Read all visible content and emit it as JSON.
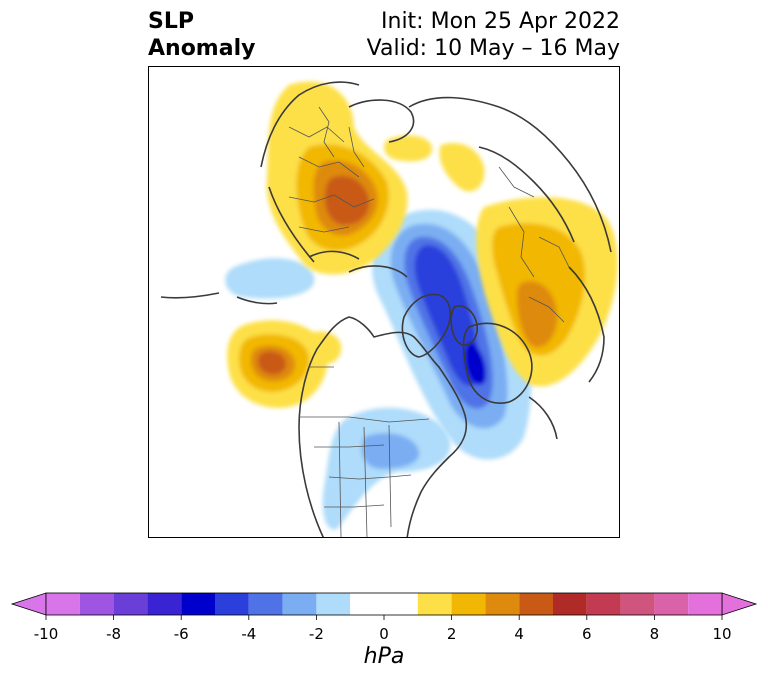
{
  "title": {
    "left_line1": "SLP",
    "left_line2": "Anomaly",
    "right_line1": "Init: Mon 25 Apr 2022",
    "right_line2": "Valid: 10 May – 16 May"
  },
  "colorbar": {
    "units": "hPa",
    "ticks": [
      "-10",
      "-8",
      "-6",
      "-4",
      "-2",
      "0",
      "2",
      "4",
      "6",
      "8",
      "10"
    ],
    "tick_values": [
      -10,
      -8,
      -6,
      -4,
      -2,
      0,
      2,
      4,
      6,
      8,
      10
    ],
    "bins": [
      {
        "from": -10,
        "to": -9,
        "color": "#d875e8"
      },
      {
        "from": -9,
        "to": -8,
        "color": "#a055e2"
      },
      {
        "from": -8,
        "to": -7,
        "color": "#6a3fd8"
      },
      {
        "from": -7,
        "to": -6,
        "color": "#3a23d3"
      },
      {
        "from": -6,
        "to": -5,
        "color": "#0000cc"
      },
      {
        "from": -5,
        "to": -4,
        "color": "#2a3fdc"
      },
      {
        "from": -4,
        "to": -3,
        "color": "#4f73e6"
      },
      {
        "from": -3,
        "to": -2,
        "color": "#7aadf2"
      },
      {
        "from": -2,
        "to": -1,
        "color": "#aedcfa"
      },
      {
        "from": -1,
        "to": 1,
        "color": "#ffffff"
      },
      {
        "from": 1,
        "to": 2,
        "color": "#fde047"
      },
      {
        "from": 2,
        "to": 3,
        "color": "#f2b705"
      },
      {
        "from": 3,
        "to": 4,
        "color": "#de8a0e"
      },
      {
        "from": 4,
        "to": 5,
        "color": "#c95a16"
      },
      {
        "from": 5,
        "to": 6,
        "color": "#b02a27"
      },
      {
        "from": 6,
        "to": 7,
        "color": "#c23b52"
      },
      {
        "from": 7,
        "to": 8,
        "color": "#d0557e"
      },
      {
        "from": 8,
        "to": 9,
        "color": "#da62a8"
      },
      {
        "from": 9,
        "to": 10,
        "color": "#e470dc"
      }
    ],
    "extend_low_color": "#d875e8",
    "extend_high_color": "#e470dc"
  },
  "map": {
    "projection": "north-polar-stereographic",
    "features": [
      "coastlines",
      "country-borders",
      "us-state-borders"
    ],
    "anomaly_centers": [
      {
        "region": "Eastern Europe / Scandinavia",
        "sign": "positive",
        "max_hpa": 5
      },
      {
        "region": "Gulf of Alaska / North Pacific",
        "sign": "positive",
        "max_hpa": 5
      },
      {
        "region": "East Siberia",
        "sign": "positive",
        "max_hpa": 4
      },
      {
        "region": "Canadian Arctic to Hudson Bay",
        "sign": "negative",
        "max_hpa": -6
      },
      {
        "region": "Central-Eastern United States",
        "sign": "negative",
        "max_hpa": -3
      }
    ]
  }
}
